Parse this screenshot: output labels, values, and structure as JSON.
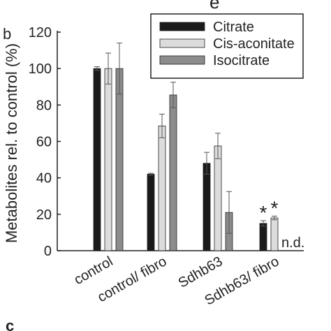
{
  "panel_label": "b",
  "cropped_top_text": "e",
  "chart_data": {
    "type": "bar",
    "ylabel": "Metabolites rel. to control (%)",
    "ylim": [
      0,
      120
    ],
    "yticks": [
      0,
      20,
      40,
      60,
      80,
      100,
      120
    ],
    "categories": [
      "control",
      "control/ fibro",
      "Sdhb63",
      "Sdhb63/ fibro"
    ],
    "series": [
      {
        "name": "Citrate",
        "color": "#1a1a1a",
        "values": [
          100,
          42,
          48,
          15
        ],
        "errors": [
          1,
          0.5,
          6,
          1.5
        ]
      },
      {
        "name": "Cis-aconitate",
        "color": "#dcdcdc",
        "values": [
          100,
          68.5,
          57.5,
          18
        ],
        "errors": [
          8.5,
          6.5,
          7,
          1
        ]
      },
      {
        "name": "Isocitrate",
        "color": "#8c8c8c",
        "values": [
          100,
          85.5,
          21,
          null
        ],
        "errors": [
          14,
          7,
          11.5,
          null
        ]
      }
    ],
    "annotations": [
      {
        "category": "Sdhb63/ fibro",
        "series": "Citrate",
        "text": "*"
      },
      {
        "category": "Sdhb63/ fibro",
        "series": "Cis-aconitate",
        "text": "*"
      },
      {
        "category": "Sdhb63/ fibro",
        "series": "Isocitrate",
        "text": "n.d."
      }
    ],
    "legend": "top-right",
    "grid": false
  },
  "bottom_cropped_label": "c"
}
